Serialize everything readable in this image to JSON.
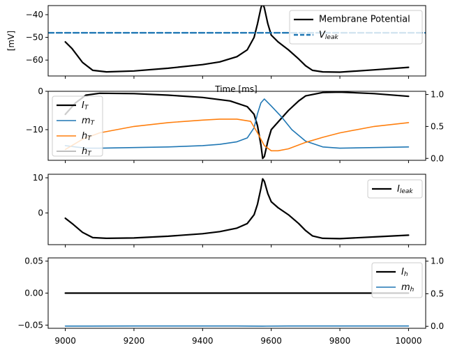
{
  "colors": {
    "black": "#000000",
    "blue": "#1f77b4",
    "orange": "#ff7f0e",
    "legend_edge": "#cccccc"
  },
  "chart_data": [
    {
      "type": "line",
      "panel": "membrane",
      "xlim": [
        8950,
        10050
      ],
      "ylim": [
        -67,
        -36
      ],
      "xticks": [
        9000,
        9200,
        9400,
        9600,
        9800,
        10000
      ],
      "yticks": [
        -40,
        -50,
        -60
      ],
      "ytick_labels": [
        "−40",
        "−50",
        "−60"
      ],
      "xtick_labels_visible": false,
      "ylabel": "[mV]",
      "xlabel": "Time [ms]",
      "legend_position": "upper-right",
      "series": [
        {
          "name": "Membrane Potential",
          "color": "#000000",
          "style": "solid",
          "x": [
            9000,
            9020,
            9050,
            9080,
            9120,
            9200,
            9300,
            9400,
            9450,
            9500,
            9530,
            9550,
            9560,
            9570,
            9575,
            9580,
            9590,
            9600,
            9620,
            9650,
            9680,
            9700,
            9720,
            9750,
            9800,
            9900,
            10000
          ],
          "y": [
            -52,
            -55,
            -61,
            -64.5,
            -65.2,
            -64.8,
            -63.6,
            -62.0,
            -60.8,
            -58.5,
            -55.5,
            -50,
            -44,
            -37,
            -35,
            -37,
            -44,
            -49,
            -52,
            -55.5,
            -59.5,
            -62.5,
            -64.5,
            -65.2,
            -65.3,
            -64.3,
            -63.2
          ]
        },
        {
          "name": "V_leak",
          "name_display": "V",
          "name_sub": "leak",
          "color": "#1f77b4",
          "style": "dashed",
          "x": [
            8950,
            10050
          ],
          "y": [
            -48,
            -48
          ]
        }
      ]
    },
    {
      "type": "line",
      "panel": "calcium",
      "xlim": [
        8950,
        10050
      ],
      "ylim": [
        -18,
        0
      ],
      "xticks": [
        9000,
        9200,
        9400,
        9600,
        9800,
        10000
      ],
      "yticks": [
        0,
        -10
      ],
      "ytick_labels": [
        "0",
        "−10"
      ],
      "y2lim": [
        -0.03,
        1.05
      ],
      "y2ticks": [
        0.0,
        0.5,
        1.0
      ],
      "y2tick_labels": [
        "0.0",
        "0.5",
        "1.0"
      ],
      "xtick_labels_visible": false,
      "legend_position": "upper-left",
      "series": [
        {
          "name": "I_T",
          "name_display": "I",
          "name_sub": "T",
          "color": "#000000",
          "axis": "left",
          "x": [
            9000,
            9030,
            9060,
            9100,
            9200,
            9300,
            9400,
            9480,
            9530,
            9550,
            9560,
            9570,
            9575,
            9580,
            9590,
            9600,
            9620,
            9650,
            9680,
            9700,
            9750,
            9800,
            9900,
            10000
          ],
          "y": [
            -6,
            -3,
            -1,
            -0.5,
            -0.6,
            -1.0,
            -1.6,
            -2.5,
            -4,
            -6,
            -9,
            -14,
            -17.5,
            -17,
            -13,
            -10,
            -8,
            -5,
            -2.5,
            -1.2,
            -0.3,
            -0.2,
            -0.6,
            -1.3
          ]
        },
        {
          "name": "m_T",
          "name_display": "m",
          "name_sub": "T",
          "color": "#1f77b4",
          "axis": "right",
          "x": [
            9000,
            9030,
            9060,
            9100,
            9200,
            9300,
            9400,
            9450,
            9500,
            9530,
            9550,
            9560,
            9570,
            9580,
            9600,
            9630,
            9660,
            9700,
            9750,
            9800,
            9900,
            10000
          ],
          "y": [
            0.2,
            0.18,
            0.16,
            0.16,
            0.17,
            0.18,
            0.2,
            0.22,
            0.26,
            0.32,
            0.48,
            0.7,
            0.87,
            0.93,
            0.82,
            0.65,
            0.45,
            0.27,
            0.18,
            0.16,
            0.17,
            0.18
          ]
        },
        {
          "name": "h_T",
          "name_display": "h",
          "name_sub": "T",
          "color": "#ff7f0e",
          "axis": "right",
          "x": [
            9000,
            9050,
            9100,
            9200,
            9300,
            9400,
            9450,
            9500,
            9540,
            9560,
            9580,
            9600,
            9620,
            9650,
            9700,
            9750,
            9800,
            9900,
            10000
          ],
          "y": [
            0.14,
            0.3,
            0.4,
            0.5,
            0.56,
            0.6,
            0.615,
            0.615,
            0.58,
            0.4,
            0.2,
            0.12,
            0.12,
            0.15,
            0.25,
            0.33,
            0.4,
            0.5,
            0.56
          ]
        },
        {
          "name": "h_T_inf",
          "name_display": "h",
          "name_sub": "T",
          "name_note": "partially hidden legend row",
          "color": "#aaaaaa",
          "axis": "right",
          "x": [],
          "y": []
        }
      ]
    },
    {
      "type": "line",
      "panel": "leak",
      "xlim": [
        8950,
        10050
      ],
      "ylim": [
        -9,
        11
      ],
      "xticks": [
        9000,
        9200,
        9400,
        9600,
        9800,
        10000
      ],
      "yticks": [
        10,
        0
      ],
      "ytick_labels": [
        "10",
        "0"
      ],
      "xtick_labels_visible": false,
      "legend_position": "upper-right",
      "series": [
        {
          "name": "I_leak",
          "name_display": "I",
          "name_sub": "leak",
          "color": "#000000",
          "x": [
            9000,
            9020,
            9050,
            9080,
            9120,
            9200,
            9300,
            9400,
            9450,
            9500,
            9530,
            9550,
            9560,
            9570,
            9575,
            9580,
            9590,
            9600,
            9620,
            9650,
            9680,
            9700,
            9720,
            9750,
            9800,
            9900,
            10000
          ],
          "y": [
            -1.5,
            -3,
            -5.5,
            -7,
            -7.2,
            -7.1,
            -6.6,
            -5.9,
            -5.3,
            -4.3,
            -3,
            -0.5,
            2.5,
            7,
            9.7,
            9,
            5.5,
            3.2,
            1.5,
            -0.5,
            -3,
            -5,
            -6.5,
            -7.2,
            -7.3,
            -6.8,
            -6.3
          ]
        }
      ]
    },
    {
      "type": "line",
      "panel": "h_current",
      "xlim": [
        8950,
        10050
      ],
      "ylim": [
        -0.055,
        0.055
      ],
      "xticks": [
        9000,
        9200,
        9400,
        9600,
        9800,
        10000
      ],
      "xtick_labels": [
        "9000",
        "9200",
        "9400",
        "9600",
        "9800",
        "10000"
      ],
      "yticks": [
        0.05,
        0.0,
        -0.05
      ],
      "ytick_labels": [
        "0.05",
        "0.00",
        "−0.05"
      ],
      "y2lim": [
        -0.03,
        1.05
      ],
      "y2ticks": [
        0.0,
        0.5,
        1.0
      ],
      "y2tick_labels": [
        "0.0",
        "0.5",
        "1.0"
      ],
      "legend_position": "upper-right",
      "series": [
        {
          "name": "I_h",
          "name_display": "I",
          "name_sub": "h",
          "color": "#000000",
          "axis": "left",
          "x": [
            9000,
            10000
          ],
          "y": [
            0.0,
            0.0
          ]
        },
        {
          "name": "m_h",
          "name_display": "m",
          "name_sub": "h",
          "color": "#1f77b4",
          "axis": "right",
          "x": [
            9000,
            9200,
            9400,
            9500,
            9575,
            9650,
            9800,
            10000
          ],
          "y": [
            0.004,
            0.005,
            0.005,
            0.005,
            0.003,
            0.005,
            0.005,
            0.005
          ]
        }
      ]
    }
  ]
}
